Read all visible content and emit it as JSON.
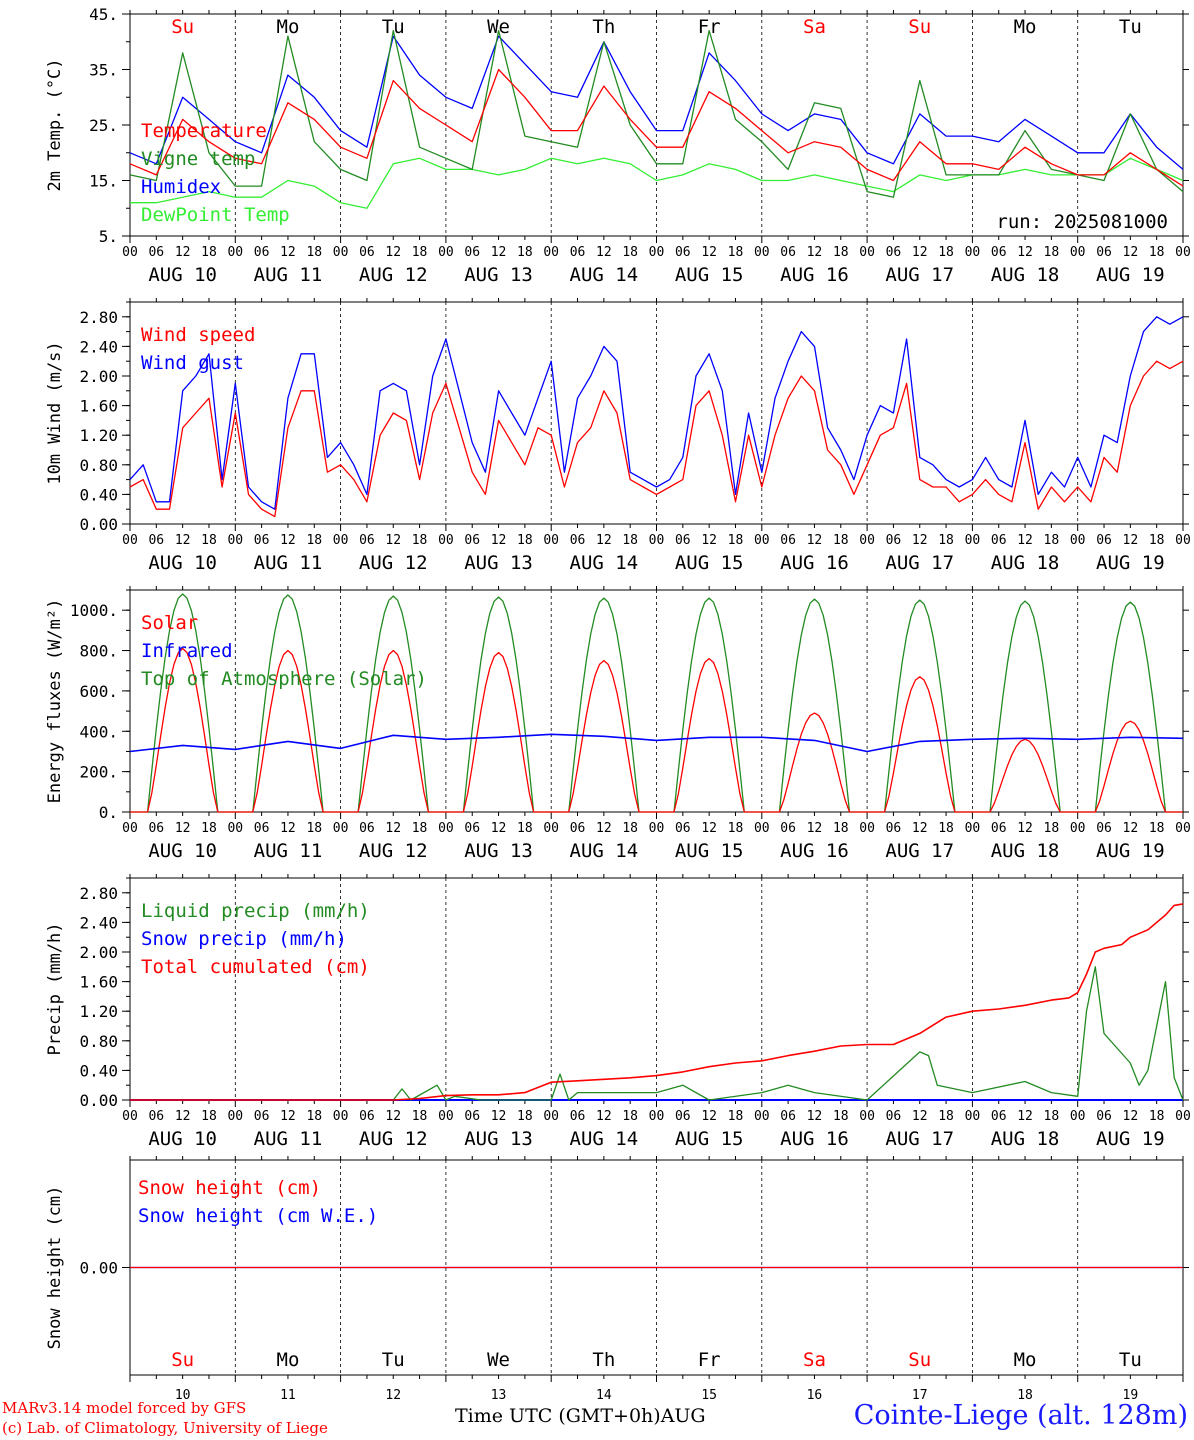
{
  "days": [
    "Su",
    "Mo",
    "Tu",
    "We",
    "Th",
    "Fr",
    "Sa",
    "Su",
    "Mo",
    "Tu"
  ],
  "day_colors": [
    "#ff0000",
    "#000000",
    "#000000",
    "#000000",
    "#000000",
    "#000000",
    "#ff0000",
    "#ff0000",
    "#000000",
    "#000000"
  ],
  "dates": [
    "AUG 10",
    "AUG 11",
    "AUG 12",
    "AUG 13",
    "AUG 14",
    "AUG 15",
    "AUG 16",
    "AUG 17",
    "AUG 18",
    "AUG 19"
  ],
  "hour_ticks": [
    "00",
    "06",
    "12",
    "18"
  ],
  "bottom_day_numbers": [
    "10",
    "11",
    "12",
    "13",
    "14",
    "15",
    "16",
    "17",
    "18",
    "19"
  ],
  "run_label": "run: 2025081000",
  "footer": {
    "credit_line1": "MARv3.14 model forced by GFS",
    "credit_line2": "(c) Lab. of Climatology, University of Liege",
    "x_title": "Time UTC (GMT+0h)AUG",
    "station": "Cointe-Liege (alt. 128m)"
  },
  "chart_data": [
    {
      "type": "line",
      "ylabel": "2m Temp. (°C)",
      "ylim": [
        5,
        45
      ],
      "ytick_labels": [
        "5.",
        "15.",
        "25.",
        "35.",
        "45."
      ],
      "ytick_values": [
        5,
        15,
        25,
        35,
        45
      ],
      "x_unit": "hours from AUG 10 00 UTC",
      "series": [
        {
          "name": "Temperature",
          "color": "#ff0000",
          "x": [
            0,
            6,
            12,
            18,
            24,
            30,
            36,
            42,
            48,
            54,
            60,
            66,
            72,
            78,
            84,
            90,
            96,
            102,
            108,
            114,
            120,
            126,
            132,
            138,
            144,
            150,
            156,
            162,
            168,
            174,
            180,
            186,
            192,
            198,
            204,
            210,
            216,
            222,
            228,
            234,
            240
          ],
          "values": [
            18,
            16,
            26,
            22,
            19,
            18,
            29,
            26,
            21,
            19,
            33,
            28,
            25,
            22,
            35,
            30,
            24,
            24,
            32,
            26,
            21,
            21,
            31,
            28,
            24,
            20,
            22,
            21,
            17,
            15,
            22,
            18,
            18,
            17,
            21,
            18,
            16,
            16,
            20,
            17,
            14
          ]
        },
        {
          "name": "Vigne temp",
          "color": "#228b22",
          "x": [
            0,
            6,
            12,
            18,
            24,
            30,
            36,
            42,
            48,
            54,
            60,
            66,
            72,
            78,
            84,
            90,
            96,
            102,
            108,
            114,
            120,
            126,
            132,
            138,
            144,
            150,
            156,
            162,
            168,
            174,
            180,
            186,
            192,
            198,
            204,
            210,
            216,
            222,
            228,
            234,
            240
          ],
          "values": [
            16,
            15,
            38,
            20,
            14,
            14,
            41,
            22,
            17,
            15,
            42,
            21,
            19,
            17,
            42,
            23,
            22,
            21,
            40,
            25,
            18,
            18,
            42,
            26,
            22,
            17,
            29,
            28,
            13,
            12,
            33,
            16,
            16,
            16,
            24,
            17,
            16,
            15,
            27,
            17,
            13
          ]
        },
        {
          "name": "Humidex",
          "color": "#0000ff",
          "x": [
            0,
            6,
            12,
            18,
            24,
            30,
            36,
            42,
            48,
            54,
            60,
            66,
            72,
            78,
            84,
            90,
            96,
            102,
            108,
            114,
            120,
            126,
            132,
            138,
            144,
            150,
            156,
            162,
            168,
            174,
            180,
            186,
            192,
            198,
            204,
            210,
            216,
            222,
            228,
            234,
            240
          ],
          "values": [
            20,
            18,
            30,
            26,
            22,
            20,
            34,
            30,
            24,
            21,
            41,
            34,
            30,
            28,
            41,
            36,
            31,
            30,
            40,
            31,
            24,
            24,
            38,
            33,
            27,
            24,
            27,
            26,
            20,
            18,
            27,
            23,
            23,
            22,
            26,
            23,
            20,
            20,
            27,
            21,
            17
          ]
        },
        {
          "name": "DewPoint Temp",
          "color": "#33ee33",
          "x": [
            0,
            6,
            12,
            18,
            24,
            30,
            36,
            42,
            48,
            54,
            60,
            66,
            72,
            78,
            84,
            90,
            96,
            102,
            108,
            114,
            120,
            126,
            132,
            138,
            144,
            150,
            156,
            162,
            168,
            174,
            180,
            186,
            192,
            198,
            204,
            210,
            216,
            222,
            228,
            234,
            240
          ],
          "values": [
            11,
            11,
            12,
            13,
            12,
            12,
            15,
            14,
            11,
            10,
            18,
            19,
            17,
            17,
            16,
            17,
            19,
            18,
            19,
            18,
            15,
            16,
            18,
            17,
            15,
            15,
            16,
            15,
            14,
            13,
            16,
            15,
            16,
            16,
            17,
            16,
            16,
            16,
            19,
            17,
            15
          ]
        }
      ]
    },
    {
      "type": "line",
      "ylabel": "10m Wind (m/s)",
      "ylim": [
        0,
        3.0
      ],
      "ytick_labels": [
        "0.00",
        "0.40",
        "0.80",
        "1.20",
        "1.60",
        "2.00",
        "2.40",
        "2.80"
      ],
      "ytick_values": [
        0,
        0.4,
        0.8,
        1.2,
        1.6,
        2.0,
        2.4,
        2.8
      ],
      "series": [
        {
          "name": "Wind speed",
          "color": "#ff0000",
          "x": [
            0,
            3,
            6,
            9,
            12,
            15,
            18,
            21,
            24,
            27,
            30,
            33,
            36,
            39,
            42,
            45,
            48,
            51,
            54,
            57,
            60,
            63,
            66,
            69,
            72,
            75,
            78,
            81,
            84,
            87,
            90,
            93,
            96,
            99,
            102,
            105,
            108,
            111,
            114,
            117,
            120,
            123,
            126,
            129,
            132,
            135,
            138,
            141,
            144,
            147,
            150,
            153,
            156,
            159,
            162,
            165,
            168,
            171,
            174,
            177,
            180,
            183,
            186,
            189,
            192,
            195,
            198,
            201,
            204,
            207,
            210,
            213,
            216,
            219,
            222,
            225,
            228,
            231,
            234,
            237,
            240
          ],
          "values": [
            0.5,
            0.6,
            0.2,
            0.2,
            1.3,
            1.5,
            1.7,
            0.5,
            1.5,
            0.4,
            0.2,
            0.1,
            1.3,
            1.8,
            1.8,
            0.7,
            0.8,
            0.6,
            0.3,
            1.2,
            1.5,
            1.4,
            0.6,
            1.5,
            1.9,
            1.3,
            0.7,
            0.4,
            1.4,
            1.1,
            0.8,
            1.3,
            1.2,
            0.5,
            1.1,
            1.3,
            1.8,
            1.5,
            0.6,
            0.5,
            0.4,
            0.5,
            0.6,
            1.6,
            1.8,
            1.2,
            0.3,
            1.2,
            0.5,
            1.2,
            1.7,
            2.0,
            1.8,
            1.0,
            0.8,
            0.4,
            0.8,
            1.2,
            1.3,
            1.9,
            0.6,
            0.5,
            0.5,
            0.3,
            0.4,
            0.6,
            0.4,
            0.3,
            1.1,
            0.2,
            0.5,
            0.3,
            0.5,
            0.3,
            0.9,
            0.7,
            1.6,
            2.0,
            2.2,
            2.1,
            2.2
          ]
        },
        {
          "name": "Wind gust",
          "color": "#0000ff",
          "x": [
            0,
            3,
            6,
            9,
            12,
            15,
            18,
            21,
            24,
            27,
            30,
            33,
            36,
            39,
            42,
            45,
            48,
            51,
            54,
            57,
            60,
            63,
            66,
            69,
            72,
            75,
            78,
            81,
            84,
            87,
            90,
            93,
            96,
            99,
            102,
            105,
            108,
            111,
            114,
            117,
            120,
            123,
            126,
            129,
            132,
            135,
            138,
            141,
            144,
            147,
            150,
            153,
            156,
            159,
            162,
            165,
            168,
            171,
            174,
            177,
            180,
            183,
            186,
            189,
            192,
            195,
            198,
            201,
            204,
            207,
            210,
            213,
            216,
            219,
            222,
            225,
            228,
            231,
            234,
            237,
            240
          ],
          "values": [
            0.6,
            0.8,
            0.3,
            0.3,
            1.8,
            2.0,
            2.3,
            0.6,
            1.9,
            0.5,
            0.3,
            0.2,
            1.7,
            2.3,
            2.3,
            0.9,
            1.1,
            0.8,
            0.4,
            1.8,
            1.9,
            1.8,
            0.8,
            2.0,
            2.5,
            1.8,
            1.1,
            0.7,
            1.8,
            1.5,
            1.2,
            1.7,
            2.2,
            0.7,
            1.7,
            2.0,
            2.4,
            2.2,
            0.7,
            0.6,
            0.5,
            0.6,
            0.9,
            2.0,
            2.3,
            1.8,
            0.4,
            1.5,
            0.7,
            1.7,
            2.2,
            2.6,
            2.4,
            1.3,
            1.0,
            0.6,
            1.2,
            1.6,
            1.5,
            2.5,
            0.9,
            0.8,
            0.6,
            0.5,
            0.6,
            0.9,
            0.6,
            0.5,
            1.4,
            0.4,
            0.7,
            0.5,
            0.9,
            0.5,
            1.2,
            1.1,
            2.0,
            2.6,
            2.8,
            2.7,
            2.8
          ]
        }
      ]
    },
    {
      "type": "line",
      "ylabel": "Energy fluxes (W/m²)",
      "ylim": [
        0,
        1100
      ],
      "ytick_labels": [
        "0.",
        "200.",
        "400.",
        "600.",
        "800.",
        "1000."
      ],
      "ytick_values": [
        0,
        200,
        400,
        600,
        800,
        1000
      ],
      "series": [
        {
          "name": "Solar",
          "color": "#ff0000",
          "daily_peak": [
            810,
            800,
            800,
            790,
            750,
            760,
            490,
            670,
            360,
            450
          ]
        },
        {
          "name": "Infrared",
          "color": "#0000ff",
          "x": [
            0,
            12,
            24,
            36,
            48,
            60,
            72,
            84,
            96,
            108,
            120,
            132,
            144,
            156,
            168,
            180,
            192,
            204,
            216,
            228,
            240
          ],
          "values": [
            300,
            330,
            310,
            350,
            315,
            380,
            360,
            370,
            385,
            375,
            355,
            370,
            370,
            355,
            300,
            350,
            360,
            365,
            360,
            370,
            365
          ]
        },
        {
          "name": "Top of Atmosphere (Solar)",
          "color": "#228b22",
          "daily_peak": [
            1080,
            1075,
            1070,
            1065,
            1060,
            1060,
            1055,
            1050,
            1045,
            1040
          ]
        }
      ]
    },
    {
      "type": "line",
      "ylabel": "Precip (mm/h)",
      "ylim": [
        0,
        3.0
      ],
      "ytick_labels": [
        "0.00",
        "0.40",
        "0.80",
        "1.20",
        "1.60",
        "2.00",
        "2.40",
        "2.80"
      ],
      "ytick_values": [
        0,
        0.4,
        0.8,
        1.2,
        1.6,
        2.0,
        2.4,
        2.8
      ],
      "series": [
        {
          "name": "Liquid precip (mm/h)",
          "color": "#228b22",
          "x": [
            0,
            60,
            62,
            64,
            70,
            72,
            74,
            80,
            96,
            98,
            100,
            102,
            120,
            126,
            132,
            144,
            150,
            156,
            168,
            180,
            182,
            184,
            192,
            204,
            210,
            216,
            218,
            220,
            222,
            228,
            230,
            232,
            236,
            238,
            240
          ],
          "values": [
            0,
            0,
            0.15,
            0,
            0.2,
            0,
            0.05,
            0,
            0,
            0.35,
            0,
            0.1,
            0.1,
            0.2,
            0,
            0.1,
            0.2,
            0.1,
            0,
            0.65,
            0.6,
            0.2,
            0.1,
            0.25,
            0.1,
            0.05,
            1.2,
            1.8,
            0.9,
            0.5,
            0.2,
            0.4,
            1.6,
            0.3,
            0
          ]
        },
        {
          "name": "Snow precip (mm/h)",
          "color": "#0000ff",
          "x": [
            0,
            240
          ],
          "values": [
            0,
            0
          ]
        },
        {
          "name": "Total cumulated (cm)",
          "color": "#ff0000",
          "x": [
            0,
            60,
            66,
            72,
            78,
            84,
            90,
            96,
            102,
            108,
            114,
            120,
            126,
            132,
            138,
            144,
            150,
            156,
            162,
            168,
            174,
            180,
            186,
            192,
            198,
            204,
            210,
            214,
            216,
            218,
            220,
            222,
            226,
            228,
            232,
            236,
            238,
            240
          ],
          "values": [
            0,
            0,
            0.02,
            0.06,
            0.07,
            0.07,
            0.1,
            0.24,
            0.26,
            0.28,
            0.3,
            0.33,
            0.38,
            0.45,
            0.5,
            0.53,
            0.6,
            0.66,
            0.73,
            0.75,
            0.75,
            0.9,
            1.12,
            1.2,
            1.23,
            1.28,
            1.35,
            1.38,
            1.45,
            1.7,
            2.0,
            2.05,
            2.1,
            2.2,
            2.3,
            2.5,
            2.63,
            2.65
          ]
        }
      ]
    },
    {
      "type": "line",
      "ylabel": "Snow height (cm)",
      "ytick_labels": [
        "0.00"
      ],
      "ytick_values": [
        0
      ],
      "series": [
        {
          "name": "Snow height (cm)",
          "color": "#ff0000",
          "x": [
            0,
            240
          ],
          "values": [
            0,
            0
          ]
        },
        {
          "name": "Snow height (cm W.E.)",
          "color": "#0000ff",
          "x": [
            0,
            240
          ],
          "values": [
            0,
            0
          ]
        }
      ]
    }
  ]
}
